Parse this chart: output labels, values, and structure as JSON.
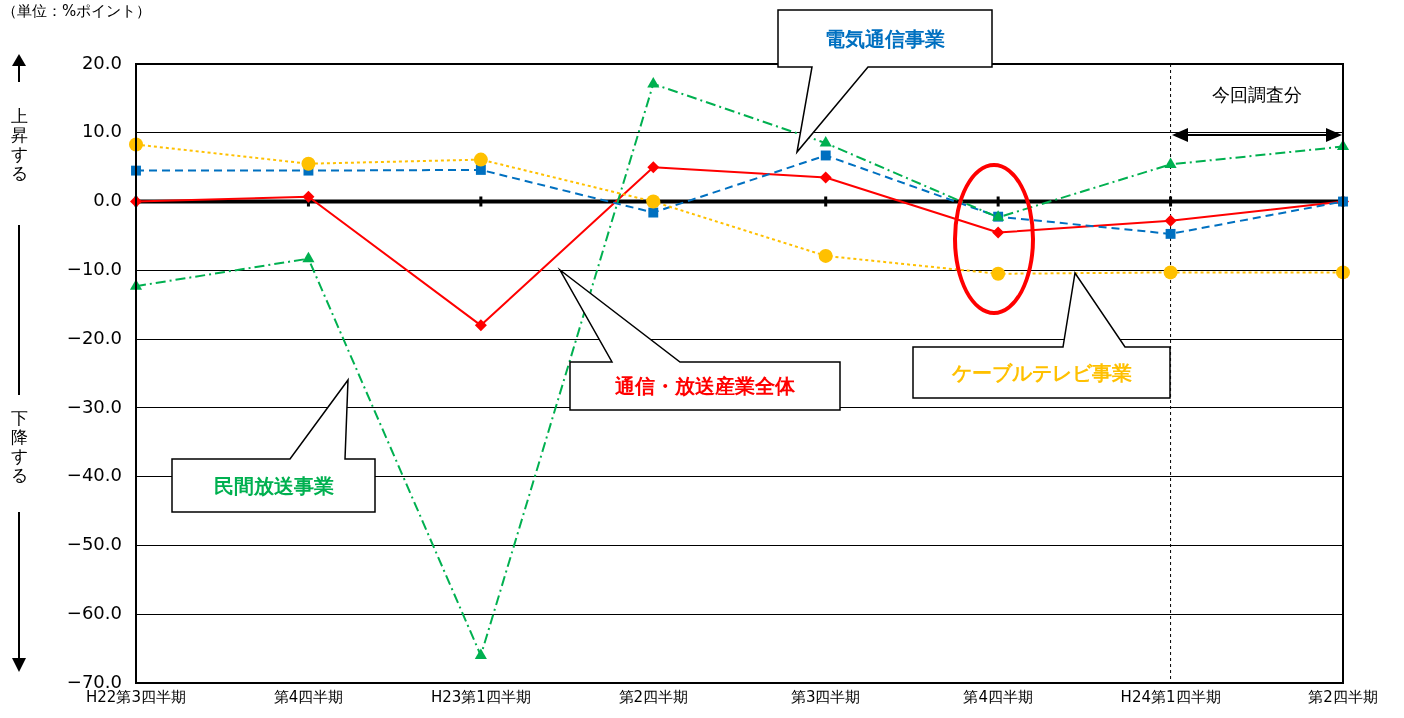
{
  "chart_data": {
    "type": "line",
    "categories": [
      "H22第3四半期",
      "第4四半期",
      "H23第1四半期",
      "第2四半期",
      "第3四半期",
      "第4四半期",
      "H24第1四半期",
      "第2四半期"
    ],
    "series": [
      {
        "name": "通信・放送産業全体",
        "color": "#ff0000",
        "marker": "diamond",
        "line_style": "solid",
        "values": [
          0.0,
          0.7,
          -18.0,
          5.0,
          3.5,
          -4.5,
          -2.8,
          0.0
        ]
      },
      {
        "name": "電気通信事業",
        "color": "#0070c0",
        "marker": "square",
        "line_style": "dashed",
        "values": [
          4.5,
          4.5,
          4.6,
          -1.6,
          6.7,
          -2.2,
          -4.7,
          0.0
        ]
      },
      {
        "name": "民間放送事業",
        "color": "#00b050",
        "marker": "triangle",
        "line_style": "dashdot",
        "values": [
          -12.3,
          -8.3,
          -66.0,
          17.1,
          8.5,
          -2.3,
          5.4,
          8.0
        ]
      },
      {
        "name": "ケーブルテレビ事業",
        "color": "#ffc000",
        "marker": "circle",
        "line_style": "dotted",
        "values": [
          8.3,
          5.5,
          6.1,
          0.0,
          -7.9,
          -10.5,
          -10.3,
          -10.3
        ]
      }
    ],
    "ylim": [
      -70,
      20
    ],
    "yticks": [
      {
        "value": -70,
        "label": "−70.0"
      },
      {
        "value": -60,
        "label": "−60.0"
      },
      {
        "value": -50,
        "label": "−50.0"
      },
      {
        "value": -40,
        "label": "−40.0"
      },
      {
        "value": -30,
        "label": "−30.0"
      },
      {
        "value": -20,
        "label": "−20.0"
      },
      {
        "value": -10,
        "label": "−10.0"
      },
      {
        "value": 0,
        "label": "0.0"
      },
      {
        "value": 10,
        "label": "10.0"
      },
      {
        "value": 20,
        "label": "20.0"
      }
    ],
    "grid": "y",
    "legend": false,
    "ref_lines": [
      {
        "axis": "y",
        "value": 0,
        "color": "#000000",
        "line_style": "solid"
      },
      {
        "axis": "x",
        "value": "H24第1四半期",
        "color": "#000000",
        "line_style": "dotted"
      }
    ],
    "annotations": [
      "（単位：%ポイント）",
      "今回調査分",
      "上昇する",
      "下降する"
    ]
  }
}
